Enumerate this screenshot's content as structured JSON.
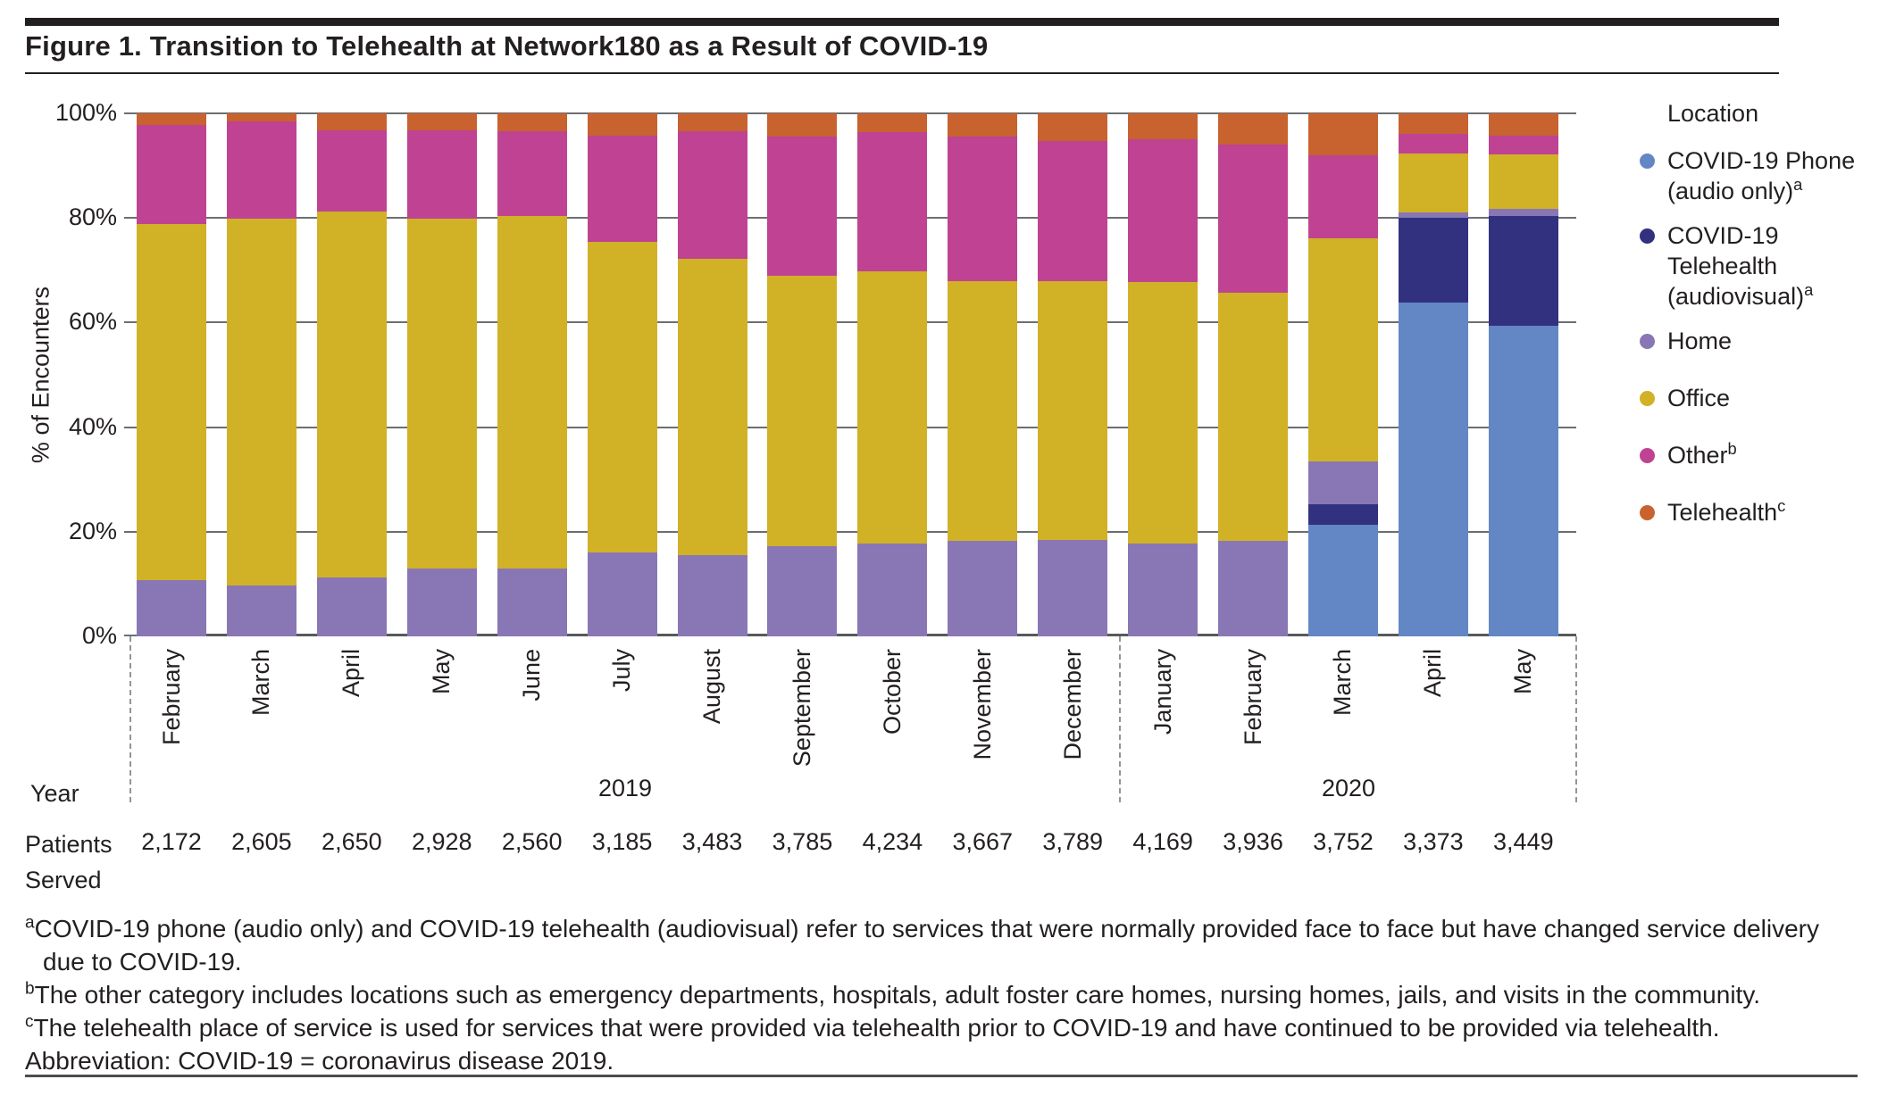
{
  "title": "Figure 1. Transition to Telehealth at Network180 as a Result of COVID-19",
  "colors": {
    "text": "#231f20",
    "grid": "#6d6e71",
    "dashed_line": "#939598",
    "covid_phone": "#6287c4",
    "covid_telehealth": "#32317f",
    "home": "#8977b5",
    "office": "#d1b126",
    "other": "#bf4392",
    "telehealth": "#c8622f"
  },
  "y_axis": {
    "label": "% of Encounters"
  },
  "rows": {
    "year_label": "Year",
    "patients_label_lines": [
      "Patients",
      "Served"
    ]
  },
  "legend": {
    "title": "Location",
    "items": [
      {
        "key": "covid_phone",
        "lines": [
          "COVID-19 Phone",
          "(audio only)"
        ],
        "sup": "a"
      },
      {
        "key": "covid_telehealth",
        "lines": [
          "COVID-19 Telehealth",
          "(audiovisual)"
        ],
        "sup": "a"
      },
      {
        "key": "home",
        "lines": [
          "Home"
        ],
        "sup": ""
      },
      {
        "key": "office",
        "lines": [
          "Office"
        ],
        "sup": ""
      },
      {
        "key": "other",
        "lines": [
          "Other"
        ],
        "sup": "b"
      },
      {
        "key": "telehealth",
        "lines": [
          "Telehealth"
        ],
        "sup": "c"
      }
    ]
  },
  "chart_data": {
    "type": "bar",
    "stacked": true,
    "title": "Figure 1. Transition to Telehealth at Network180 as a Result of COVID-19",
    "ylabel": "% of Encounters",
    "ylim": [
      0,
      100
    ],
    "yticks": [
      0,
      20,
      40,
      60,
      80,
      100
    ],
    "ytick_labels": [
      "0%",
      "20%",
      "40%",
      "60%",
      "80%",
      "100%"
    ],
    "grid": true,
    "legend_position": "right",
    "categories": [
      "February",
      "March",
      "April",
      "May",
      "June",
      "July",
      "August",
      "September",
      "October",
      "November",
      "December",
      "January",
      "February",
      "March",
      "April",
      "May"
    ],
    "years": [
      {
        "label": "2019",
        "start_index": 0,
        "end_index": 10
      },
      {
        "label": "2020",
        "start_index": 11,
        "end_index": 15
      }
    ],
    "patients_served": [
      "2,172",
      "2,605",
      "2,650",
      "2,928",
      "2,560",
      "3,185",
      "3,483",
      "3,785",
      "4,234",
      "3,667",
      "3,789",
      "4,169",
      "3,936",
      "3,752",
      "3,373",
      "3,449"
    ],
    "unit": "% of encounters",
    "series": [
      {
        "key": "covid_phone",
        "name": "COVID-19 Phone (audio only)",
        "color": "#6287c4",
        "values": [
          0,
          0,
          0,
          0,
          0,
          0,
          0,
          0,
          0,
          0,
          0,
          0,
          0,
          21.3,
          63.8,
          59.4
        ]
      },
      {
        "key": "covid_telehealth",
        "name": "COVID-19 Telehealth (audiovisual)",
        "color": "#32317f",
        "values": [
          0,
          0,
          0,
          0,
          0,
          0,
          0,
          0,
          0,
          0,
          0,
          0,
          0,
          3.9,
          16.2,
          20.9
        ]
      },
      {
        "key": "home",
        "name": "Home",
        "color": "#8977b5",
        "values": [
          10.7,
          9.8,
          11.3,
          12.9,
          13.0,
          16.1,
          15.5,
          17.2,
          17.8,
          18.3,
          18.5,
          17.7,
          18.2,
          8.3,
          1.1,
          1.5
        ]
      },
      {
        "key": "office",
        "name": "Office",
        "color": "#d1b126",
        "values": [
          68.1,
          70.0,
          70.0,
          66.9,
          67.3,
          59.4,
          56.7,
          51.7,
          52.0,
          49.7,
          49.5,
          50.0,
          47.5,
          42.7,
          11.2,
          10.4
        ]
      },
      {
        "key": "other",
        "name": "Other",
        "color": "#bf4392",
        "values": [
          19.0,
          18.6,
          15.4,
          16.9,
          16.3,
          20.3,
          24.4,
          26.6,
          26.6,
          27.6,
          26.7,
          27.3,
          28.4,
          15.8,
          3.7,
          3.5
        ]
      },
      {
        "key": "telehealth",
        "name": "Telehealth",
        "color": "#c8622f",
        "values": [
          2.2,
          1.6,
          3.3,
          3.3,
          3.4,
          4.2,
          3.4,
          4.5,
          3.6,
          4.4,
          5.3,
          5.0,
          5.9,
          8.0,
          4.0,
          4.3
        ]
      }
    ]
  },
  "footnotes": [
    {
      "sup": "a",
      "text": "COVID-19 phone (audio only) and COVID-19 telehealth (audiovisual) refer to services that were normally provided face to face but have changed service delivery due to COVID-19."
    },
    {
      "sup": "b",
      "text": "The other category includes locations such as emergency departments, hospitals, adult foster care homes, nursing homes, jails, and visits in the community."
    },
    {
      "sup": "c",
      "text": "The telehealth place of service is used for services that were provided via telehealth prior to COVID-19 and have continued to be provided via telehealth."
    },
    {
      "sup": "",
      "text": "Abbreviation: COVID-19 = coronavirus disease 2019."
    }
  ]
}
